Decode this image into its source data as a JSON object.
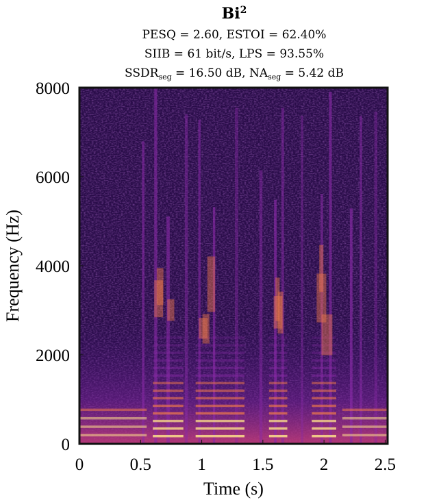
{
  "chart_data": {
    "type": "heatmap",
    "title": "Bi",
    "title_sup": "2",
    "subtitle_lines": [
      {
        "parts": [
          {
            "text": "PESQ = 2.60, ESTOI = 62.40%"
          }
        ]
      },
      {
        "parts": [
          {
            "text": "SIIB = 61 bit/s, LPS = 93.55%"
          }
        ]
      },
      {
        "parts": [
          {
            "text": "SSDR"
          },
          {
            "text": "seg",
            "sub": true
          },
          {
            "text": " = 16.50 dB, NA"
          },
          {
            "text": "seg",
            "sub": true
          },
          {
            "text": " = 5.42 dB"
          }
        ]
      }
    ],
    "xlabel": "Time (s)",
    "ylabel": "Frequency (Hz)",
    "xlim": [
      0,
      2.52
    ],
    "ylim": [
      0,
      8000
    ],
    "xticks": [
      0,
      0.5,
      1,
      1.5,
      2,
      2.5
    ],
    "xtick_labels": [
      "0",
      "0.5",
      "1",
      "1.5",
      "2",
      "2.5"
    ],
    "yticks": [
      0,
      2000,
      4000,
      6000,
      8000
    ],
    "ytick_labels": [
      "0",
      "2000",
      "4000",
      "6000",
      "8000"
    ],
    "colormap": "inferno",
    "colors": {
      "background": "#2a0d4a",
      "low": "#3a1170",
      "mid": "#8a2aa8",
      "high": "#f07a4a",
      "peak": "#fde08a",
      "frame": "#111111"
    },
    "grid": false,
    "speech_segments_s": [
      [
        0.6,
        0.85
      ],
      [
        0.95,
        1.35
      ],
      [
        1.55,
        1.7
      ],
      [
        1.9,
        2.1
      ]
    ]
  }
}
